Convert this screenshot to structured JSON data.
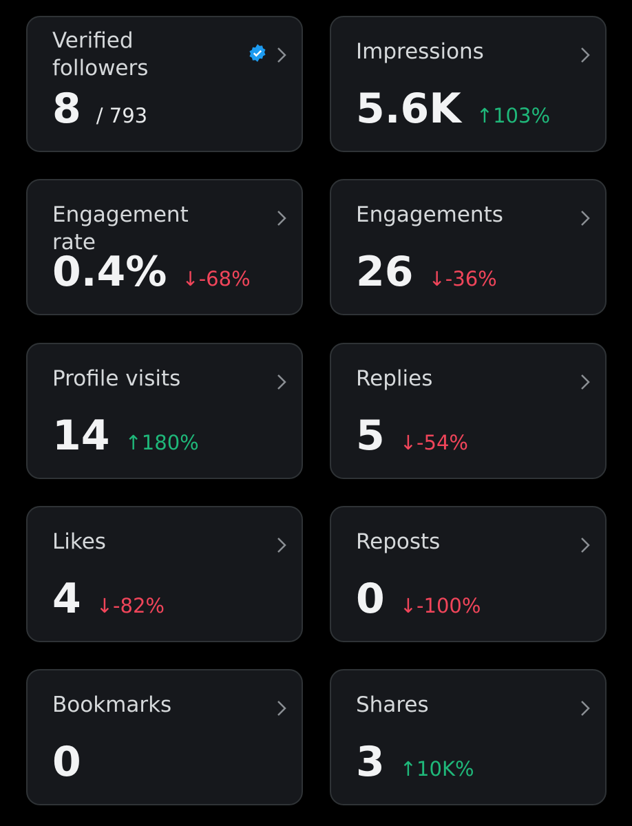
{
  "cards": [
    {
      "label": "Verified followers",
      "value": "8",
      "sub": "/ 793"
    },
    {
      "label": "Impressions",
      "value": "5.6K",
      "change": "↑103%",
      "change_color": "#1fb87a"
    },
    {
      "label": "Engagement rate",
      "value": "0.4%",
      "change": "↓-68%",
      "change_color": "#f0455a"
    },
    {
      "label": "Engagements",
      "value": "26",
      "change": "↓-36%",
      "change_color": "#f0455a"
    },
    {
      "label": "Profile visits",
      "value": "14",
      "change": "↑180%",
      "change_color": "#1fb87a"
    },
    {
      "label": "Replies",
      "value": "5",
      "change": "↓-54%",
      "change_color": "#f0455a"
    },
    {
      "label": "Likes",
      "value": "4",
      "change": "↓-82%",
      "change_color": "#f0455a"
    },
    {
      "label": "Reposts",
      "value": "0",
      "change": "↓-100%",
      "change_color": "#f0455a"
    },
    {
      "label": "Bookmarks",
      "value": "0"
    },
    {
      "label": "Shares",
      "value": "3",
      "change": "↑10K%",
      "change_color": "#1fb87a"
    }
  ]
}
